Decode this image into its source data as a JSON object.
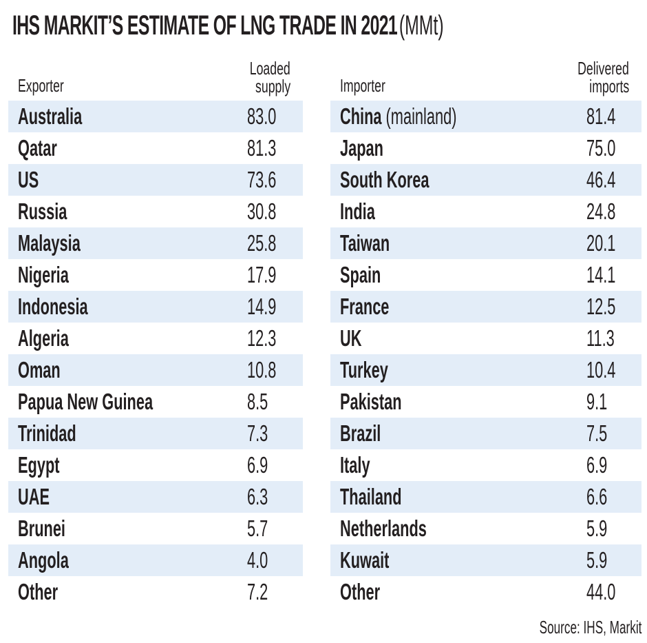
{
  "title": {
    "main": "IHS MARKIT’S ESTIMATE OF LNG TRADE IN 2021",
    "unit": "(MMt)"
  },
  "colors": {
    "band": "#e3edf8",
    "text": "#231f20"
  },
  "source": "Source: IHS, Markit",
  "chart_data": {
    "type": "table",
    "title": "IHS MARKIT’S ESTIMATE OF LNG TRADE IN 2021 (MMt)",
    "tables": [
      {
        "columns": [
          "Exporter",
          "Loaded supply"
        ],
        "header_value_lines": [
          "Loaded",
          "supply"
        ],
        "rows": [
          {
            "name": "Australia",
            "value": "83.0"
          },
          {
            "name": "Qatar",
            "value": "81.3"
          },
          {
            "name": "US",
            "value": "73.6"
          },
          {
            "name": "Russia",
            "value": "30.8"
          },
          {
            "name": "Malaysia",
            "value": "25.8"
          },
          {
            "name": "Nigeria",
            "value": "17.9"
          },
          {
            "name": "Indonesia",
            "value": "14.9"
          },
          {
            "name": "Algeria",
            "value": "12.3"
          },
          {
            "name": "Oman",
            "value": "10.8"
          },
          {
            "name": "Papua New Guinea",
            "value": "8.5"
          },
          {
            "name": "Trinidad",
            "value": "7.3"
          },
          {
            "name": "Egypt",
            "value": "6.9"
          },
          {
            "name": "UAE",
            "value": "6.3"
          },
          {
            "name": "Brunei",
            "value": "5.7"
          },
          {
            "name": "Angola",
            "value": "4.0"
          },
          {
            "name": "Other",
            "value": "7.2"
          }
        ]
      },
      {
        "columns": [
          "Importer",
          "Delivered imports"
        ],
        "header_value_lines": [
          "Delivered",
          "imports"
        ],
        "rows": [
          {
            "name": "China",
            "qualifier": "(mainland)",
            "value": "81.4"
          },
          {
            "name": "Japan",
            "value": "75.0"
          },
          {
            "name": "South Korea",
            "value": "46.4"
          },
          {
            "name": "India",
            "value": "24.8"
          },
          {
            "name": "Taiwan",
            "value": "20.1"
          },
          {
            "name": "Spain",
            "value": "14.1"
          },
          {
            "name": "France",
            "value": "12.5"
          },
          {
            "name": "UK",
            "value": "11.3"
          },
          {
            "name": "Turkey",
            "value": "10.4"
          },
          {
            "name": "Pakistan",
            "value": "9.1"
          },
          {
            "name": "Brazil",
            "value": "7.5"
          },
          {
            "name": "Italy",
            "value": "6.9"
          },
          {
            "name": "Thailand",
            "value": "6.6"
          },
          {
            "name": "Netherlands",
            "value": "5.9"
          },
          {
            "name": "Kuwait",
            "value": "5.9"
          },
          {
            "name": "Other",
            "value": "44.0"
          }
        ]
      }
    ]
  }
}
